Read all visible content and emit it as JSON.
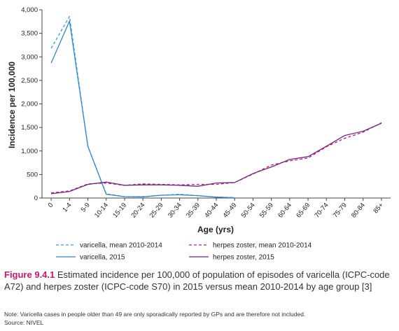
{
  "chart_data": {
    "type": "line",
    "xlabel": "Age (yrs)",
    "ylabel": "Incidence per 100,000",
    "ylim": [
      0,
      4000
    ],
    "yticks": [
      0,
      500,
      1000,
      1500,
      2000,
      2500,
      3000,
      3500,
      4000
    ],
    "ytick_labels": [
      "0",
      "500",
      "1,000",
      "1,500",
      "2,000",
      "2,500",
      "3,000",
      "3,500",
      "4,000"
    ],
    "grid": false,
    "legend_position": "bottom",
    "categories": [
      "0",
      "1-4",
      "5-9",
      "10-14",
      "15-19",
      "20-24",
      "25-29",
      "30-34",
      "35-39",
      "40-44",
      "45-49",
      "50-54",
      "55-59",
      "60-64",
      "65-69",
      "70-74",
      "75-79",
      "80-84",
      "85+"
    ],
    "series": [
      {
        "name": "varicella, mean 2010-2014",
        "color": "#3a9ad9",
        "dash": true,
        "values": [
          3180,
          3860,
          1100,
          90,
          30,
          30,
          60,
          80,
          50,
          20,
          10,
          null,
          null,
          null,
          null,
          null,
          null,
          null,
          null
        ]
      },
      {
        "name": "varicella, 2015",
        "color": "#2f86c8",
        "dash": false,
        "values": [
          2870,
          3760,
          1100,
          80,
          30,
          25,
          60,
          70,
          50,
          20,
          5,
          null,
          null,
          null,
          null,
          null,
          null,
          null,
          null
        ]
      },
      {
        "name": "herpes zoster, mean 2010-2014",
        "color": "#c4196f",
        "dash": true,
        "values": [
          110,
          150,
          300,
          320,
          270,
          300,
          290,
          280,
          290,
          290,
          330,
          510,
          700,
          790,
          850,
          1090,
          1270,
          1400,
          1600
        ]
      },
      {
        "name": "herpes zoster, 2015",
        "color": "#6b2a82",
        "dash": false,
        "values": [
          90,
          140,
          290,
          340,
          270,
          280,
          280,
          270,
          250,
          320,
          330,
          520,
          660,
          820,
          880,
          1100,
          1330,
          1420,
          1590
        ]
      }
    ]
  },
  "caption": {
    "label": "Figure 9.4.1",
    "text": " Estimated incidence per 100,000 of population of episodes of varicella (ICPC-code A72) and herpes zoster (ICPC-code S70) in 2015 versus mean 2010-2014 by age group [3]"
  },
  "note": "Note: Varicella cases in people older than 49 are only sporadically reported by GPs and are therefore not included.",
  "source": "Source: NIVEL"
}
